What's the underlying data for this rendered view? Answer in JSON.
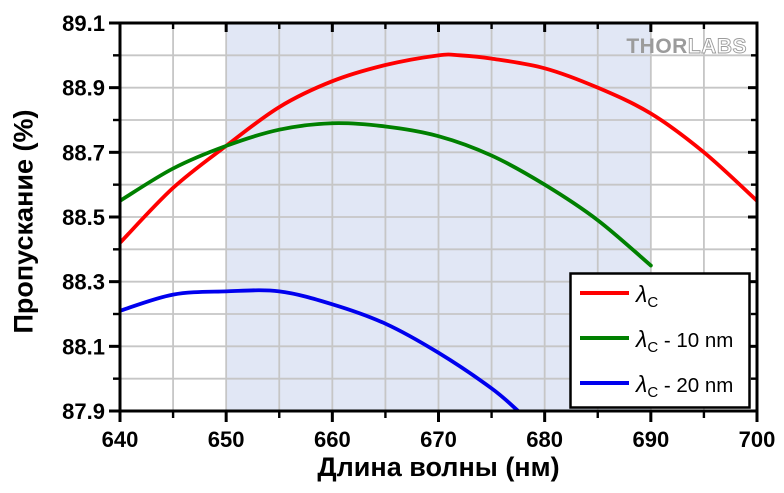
{
  "page": {
    "background": "#ffffff"
  },
  "branding": {
    "logo_text_1": "THOR",
    "logo_text_2": "LABS",
    "logo_color": "#9b9b9b"
  },
  "chart_data": {
    "type": "line",
    "title": "",
    "xlabel": "Длина волны (нм)",
    "ylabel": "Пропускание (%)",
    "xlim": [
      640,
      700
    ],
    "ylim": [
      87.9,
      89.1
    ],
    "x_major_ticks": [
      640,
      650,
      660,
      670,
      680,
      690,
      700
    ],
    "x_minor_ticks": [
      645,
      655,
      665,
      675,
      685,
      695
    ],
    "y_major_ticks": [
      87.9,
      88.1,
      88.3,
      88.5,
      88.7,
      88.9,
      89.1
    ],
    "y_minor_ticks": [
      88.0,
      88.2,
      88.4,
      88.6,
      88.8,
      89.0
    ],
    "grid": true,
    "grid_color": "#c6c6c6",
    "axis_color": "#000000",
    "shaded_region": {
      "x_start": 650,
      "x_end": 690,
      "color": "#e1e7f5"
    },
    "legend": {
      "position": "bottom-right",
      "border_color": "#000000",
      "background": "#ffffff"
    },
    "series": [
      {
        "id": "lambda-c",
        "name": "λC",
        "legend_parts": {
          "symbol": "λ",
          "subscript": "C",
          "suffix": ""
        },
        "color": "#ff0000",
        "x": [
          640,
          645,
          650,
          655,
          660,
          665,
          670,
          672,
          675,
          680,
          685,
          690,
          695,
          700
        ],
        "y": [
          88.42,
          88.59,
          88.72,
          88.84,
          88.92,
          88.97,
          89.0,
          89.0,
          88.99,
          88.96,
          88.9,
          88.82,
          88.7,
          88.55
        ]
      },
      {
        "id": "lambda-c-minus-10nm",
        "name": "λC - 10 nm",
        "legend_parts": {
          "symbol": "λ",
          "subscript": "C",
          "suffix": " - 10 nm"
        },
        "color": "#008000",
        "x": [
          640,
          645,
          650,
          655,
          660,
          665,
          670,
          675,
          680,
          685,
          690
        ],
        "y": [
          88.55,
          88.65,
          88.72,
          88.77,
          88.79,
          88.78,
          88.75,
          88.69,
          88.6,
          88.49,
          88.35
        ]
      },
      {
        "id": "lambda-c-minus-20nm",
        "name": "λC - 20 nm",
        "legend_parts": {
          "symbol": "λ",
          "subscript": "C",
          "suffix": " - 20 nm"
        },
        "color": "#0000ee",
        "x": [
          640,
          645,
          650,
          655,
          660,
          665,
          670,
          675,
          677.5
        ],
        "y": [
          88.21,
          88.26,
          88.27,
          88.27,
          88.23,
          88.17,
          88.08,
          87.97,
          87.9
        ]
      }
    ]
  }
}
